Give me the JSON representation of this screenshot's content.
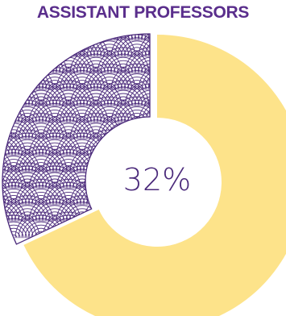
{
  "colors": {
    "title": "#5a2e8c",
    "remainder": "#fde38a",
    "highlight_stroke": "#4b2a7b",
    "highlight_fill": "#ffffff",
    "center_text": "#4b2a7b"
  },
  "chart_data": {
    "type": "pie",
    "variant": "donut",
    "title": "ASSISTANT PROFESSORS",
    "center_label": "32%",
    "slices": [
      {
        "label": "",
        "value": 32,
        "pattern": "scallop-arcs",
        "exploded": true
      },
      {
        "label": "",
        "value": 68
      }
    ]
  }
}
